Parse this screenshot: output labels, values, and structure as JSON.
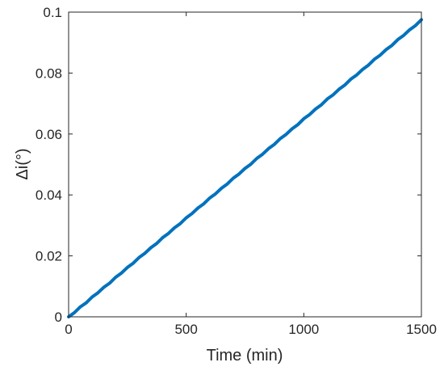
{
  "chart_data": {
    "type": "line",
    "title": "",
    "xlabel": "Time (min)",
    "ylabel": "Δi(°)",
    "xlim": [
      0,
      1500
    ],
    "ylim": [
      0,
      0.1
    ],
    "xticks": [
      0,
      500,
      1000,
      1500
    ],
    "xtick_labels": [
      "0",
      "500",
      "1000",
      "1500"
    ],
    "yticks": [
      0,
      0.02,
      0.04,
      0.06,
      0.08,
      0.1
    ],
    "ytick_labels": [
      "0",
      "0.02",
      "0.04",
      "0.06",
      "0.08",
      "0.1"
    ],
    "grid": false,
    "legend": "none",
    "line_color": "#0072BD",
    "series": [
      {
        "x": [
          0,
          25,
          50,
          75,
          100,
          125,
          150,
          175,
          200,
          225,
          250,
          275,
          300,
          325,
          350,
          375,
          400,
          425,
          450,
          475,
          500,
          525,
          550,
          575,
          600,
          625,
          650,
          675,
          700,
          725,
          750,
          775,
          800,
          825,
          850,
          875,
          900,
          925,
          950,
          975,
          1000,
          1025,
          1050,
          1075,
          1100,
          1125,
          1150,
          1175,
          1200,
          1225,
          1250,
          1275,
          1300,
          1325,
          1350,
          1375,
          1400,
          1425,
          1450,
          1475,
          1500
        ],
        "y": [
          0.0,
          0.0014,
          0.0033,
          0.0046,
          0.0065,
          0.0079,
          0.0097,
          0.0111,
          0.013,
          0.0144,
          0.0162,
          0.0176,
          0.0195,
          0.0209,
          0.0227,
          0.0241,
          0.026,
          0.0274,
          0.0292,
          0.0306,
          0.0325,
          0.0339,
          0.0357,
          0.0371,
          0.039,
          0.0404,
          0.0422,
          0.0436,
          0.0455,
          0.0469,
          0.0487,
          0.0501,
          0.052,
          0.0534,
          0.0552,
          0.0566,
          0.0585,
          0.0599,
          0.0617,
          0.0631,
          0.065,
          0.0664,
          0.0682,
          0.0696,
          0.0715,
          0.0729,
          0.0747,
          0.0761,
          0.078,
          0.0794,
          0.0812,
          0.0826,
          0.0845,
          0.0859,
          0.0877,
          0.0891,
          0.091,
          0.0924,
          0.0942,
          0.0956,
          0.0975
        ]
      }
    ]
  }
}
